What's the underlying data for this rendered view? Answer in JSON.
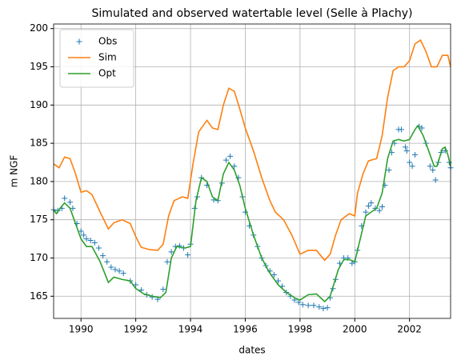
{
  "chart_data": {
    "type": "line",
    "title": "Simulated and observed watertable level (Selle à Plachy)",
    "x_label": "dates",
    "y_label": "m NGF",
    "xlim": [
      1989.0,
      2003.5
    ],
    "ylim": [
      162.1,
      200.6
    ],
    "xticks": [
      1990,
      1992,
      1994,
      1996,
      1998,
      2000,
      2002
    ],
    "yticks": [
      165,
      170,
      175,
      180,
      185,
      190,
      195,
      200
    ],
    "grid": true,
    "legend": "upper-left",
    "series": [
      {
        "name": "Obs",
        "color": "#1f77b4",
        "style": "marker",
        "x": [
          1989.0,
          1989.15,
          1989.3,
          1989.4,
          1989.6,
          1989.7,
          1989.85,
          1990.0,
          1990.1,
          1990.2,
          1990.35,
          1990.5,
          1990.65,
          1990.8,
          1990.95,
          1991.1,
          1991.25,
          1991.4,
          1991.55,
          1991.8,
          1992.0,
          1992.2,
          1992.4,
          1992.6,
          1992.8,
          1993.0,
          1993.15,
          1993.3,
          1993.45,
          1993.6,
          1993.75,
          1993.9,
          1994.0,
          1994.15,
          1994.25,
          1994.4,
          1994.6,
          1994.85,
          1995.0,
          1995.15,
          1995.3,
          1995.45,
          1995.6,
          1995.75,
          1995.9,
          1996.0,
          1996.15,
          1996.3,
          1996.45,
          1996.6,
          1996.75,
          1996.9,
          1997.05,
          1997.2,
          1997.35,
          1997.5,
          1997.65,
          1997.8,
          1997.95,
          1998.1,
          1998.3,
          1998.5,
          1998.7,
          1998.85,
          1999.0,
          1999.1,
          1999.2,
          1999.3,
          1999.45,
          1999.6,
          1999.75,
          1999.9,
          2000.0,
          2000.1,
          2000.25,
          2000.4,
          2000.5,
          2000.6,
          2000.75,
          2000.9,
          2001.0,
          2001.1,
          2001.25,
          2001.35,
          2001.45,
          2001.6,
          2001.7,
          2001.85,
          2001.9,
          2002.0,
          2002.1,
          2002.2,
          2002.35,
          2002.45,
          2002.6,
          2002.75,
          2002.85,
          2002.95,
          2003.05,
          2003.15,
          2003.3,
          2003.45,
          2003.5
        ],
        "values": [
          176.3,
          176.2,
          176.5,
          177.8,
          177.3,
          176.5,
          174.5,
          173.5,
          173.0,
          172.5,
          172.3,
          172.0,
          171.3,
          170.3,
          169.5,
          168.8,
          168.5,
          168.3,
          168.0,
          167.0,
          166.5,
          165.8,
          165.2,
          164.9,
          164.6,
          165.9,
          169.5,
          170.8,
          171.5,
          171.6,
          171.3,
          170.4,
          171.8,
          176.5,
          178.0,
          180.5,
          179.5,
          177.6,
          177.5,
          179.8,
          182.8,
          183.3,
          182.0,
          180.5,
          178.0,
          176.0,
          174.2,
          173.0,
          171.5,
          170.0,
          169.0,
          168.3,
          167.8,
          167.0,
          166.3,
          165.5,
          165.0,
          164.5,
          164.2,
          163.9,
          163.8,
          163.8,
          163.6,
          163.4,
          163.5,
          164.8,
          166.0,
          167.2,
          169.3,
          170.0,
          170.0,
          169.3,
          169.5,
          171.0,
          174.2,
          176.0,
          176.8,
          177.2,
          176.5,
          176.2,
          176.7,
          179.5,
          181.5,
          183.8,
          185.0,
          186.8,
          186.8,
          184.5,
          184.0,
          182.5,
          182.0,
          183.5,
          187.2,
          187.0,
          185.0,
          182.0,
          181.5,
          180.2,
          182.5,
          183.8,
          184.0,
          182.5,
          181.8
        ]
      },
      {
        "name": "Sim",
        "color": "#ff7f0e",
        "style": "line",
        "x": [
          1989.0,
          1989.2,
          1989.4,
          1989.6,
          1989.8,
          1990.0,
          1990.2,
          1990.4,
          1990.7,
          1991.0,
          1991.2,
          1991.5,
          1991.8,
          1992.0,
          1992.2,
          1992.5,
          1992.8,
          1993.0,
          1993.2,
          1993.4,
          1993.7,
          1993.9,
          1994.1,
          1994.3,
          1994.6,
          1994.8,
          1995.0,
          1995.2,
          1995.4,
          1995.6,
          1995.8,
          1996.0,
          1996.3,
          1996.6,
          1996.9,
          1997.1,
          1997.4,
          1997.7,
          1998.0,
          1998.3,
          1998.6,
          1998.9,
          1999.1,
          1999.3,
          1999.5,
          1999.8,
          2000.0,
          2000.1,
          2000.3,
          2000.5,
          2000.8,
          2001.0,
          2001.2,
          2001.4,
          2001.6,
          2001.8,
          2002.0,
          2002.2,
          2002.4,
          2002.6,
          2002.8,
          2003.0,
          2003.2,
          2003.4,
          2003.5
        ],
        "values": [
          182.3,
          181.8,
          183.2,
          183.0,
          181.0,
          178.6,
          178.8,
          178.3,
          176.0,
          173.8,
          174.6,
          175.0,
          174.5,
          172.8,
          171.4,
          171.1,
          171.0,
          171.8,
          175.5,
          177.5,
          178.0,
          177.8,
          182.5,
          186.5,
          188.0,
          187.0,
          186.8,
          190.0,
          192.2,
          191.8,
          189.5,
          187.0,
          184.0,
          180.5,
          177.5,
          176.0,
          175.0,
          173.0,
          170.5,
          171.0,
          171.0,
          169.7,
          170.5,
          173.0,
          175.0,
          175.8,
          175.5,
          178.5,
          181.0,
          182.7,
          183.0,
          186.0,
          191.0,
          194.5,
          195.0,
          195.0,
          195.8,
          198.0,
          198.5,
          197.0,
          195.0,
          195.0,
          196.5,
          196.5,
          195.0
        ]
      },
      {
        "name": "Opt",
        "color": "#2ca02c",
        "style": "line",
        "x": [
          1989.0,
          1989.1,
          1989.3,
          1989.4,
          1989.6,
          1989.8,
          1990.0,
          1990.2,
          1990.4,
          1990.7,
          1991.0,
          1991.2,
          1991.5,
          1991.8,
          1992.0,
          1992.3,
          1992.6,
          1992.9,
          1993.1,
          1993.3,
          1993.5,
          1993.8,
          1994.0,
          1994.2,
          1994.4,
          1994.6,
          1994.8,
          1995.0,
          1995.2,
          1995.4,
          1995.6,
          1995.8,
          1996.0,
          1996.3,
          1996.6,
          1996.9,
          1997.2,
          1997.5,
          1997.8,
          1998.0,
          1998.3,
          1998.6,
          1998.9,
          1999.1,
          1999.4,
          1999.6,
          1999.8,
          2000.0,
          2000.2,
          2000.4,
          2000.6,
          2000.8,
          2001.0,
          2001.2,
          2001.4,
          2001.6,
          2001.8,
          2002.0,
          2002.2,
          2002.3,
          2002.5,
          2002.7,
          2002.9,
          2003.0,
          2003.2,
          2003.3,
          2003.4,
          2003.5
        ],
        "values": [
          176.3,
          175.8,
          176.8,
          177.2,
          176.5,
          174.5,
          172.5,
          171.5,
          171.5,
          169.5,
          166.8,
          167.5,
          167.2,
          167.0,
          166.0,
          165.3,
          165.0,
          164.8,
          165.5,
          170.0,
          171.5,
          171.3,
          171.5,
          177.5,
          180.5,
          180.0,
          178.0,
          177.5,
          181.0,
          182.5,
          181.5,
          179.5,
          176.5,
          173.0,
          170.0,
          168.0,
          166.5,
          165.5,
          164.8,
          164.5,
          165.2,
          165.3,
          164.3,
          165.0,
          168.5,
          169.8,
          169.8,
          169.5,
          172.5,
          175.5,
          176.0,
          176.5,
          178.5,
          183.0,
          185.3,
          185.5,
          185.3,
          185.5,
          186.8,
          187.3,
          186.0,
          184.0,
          182.0,
          182.0,
          184.3,
          184.5,
          183.5,
          182.0
        ]
      }
    ]
  }
}
